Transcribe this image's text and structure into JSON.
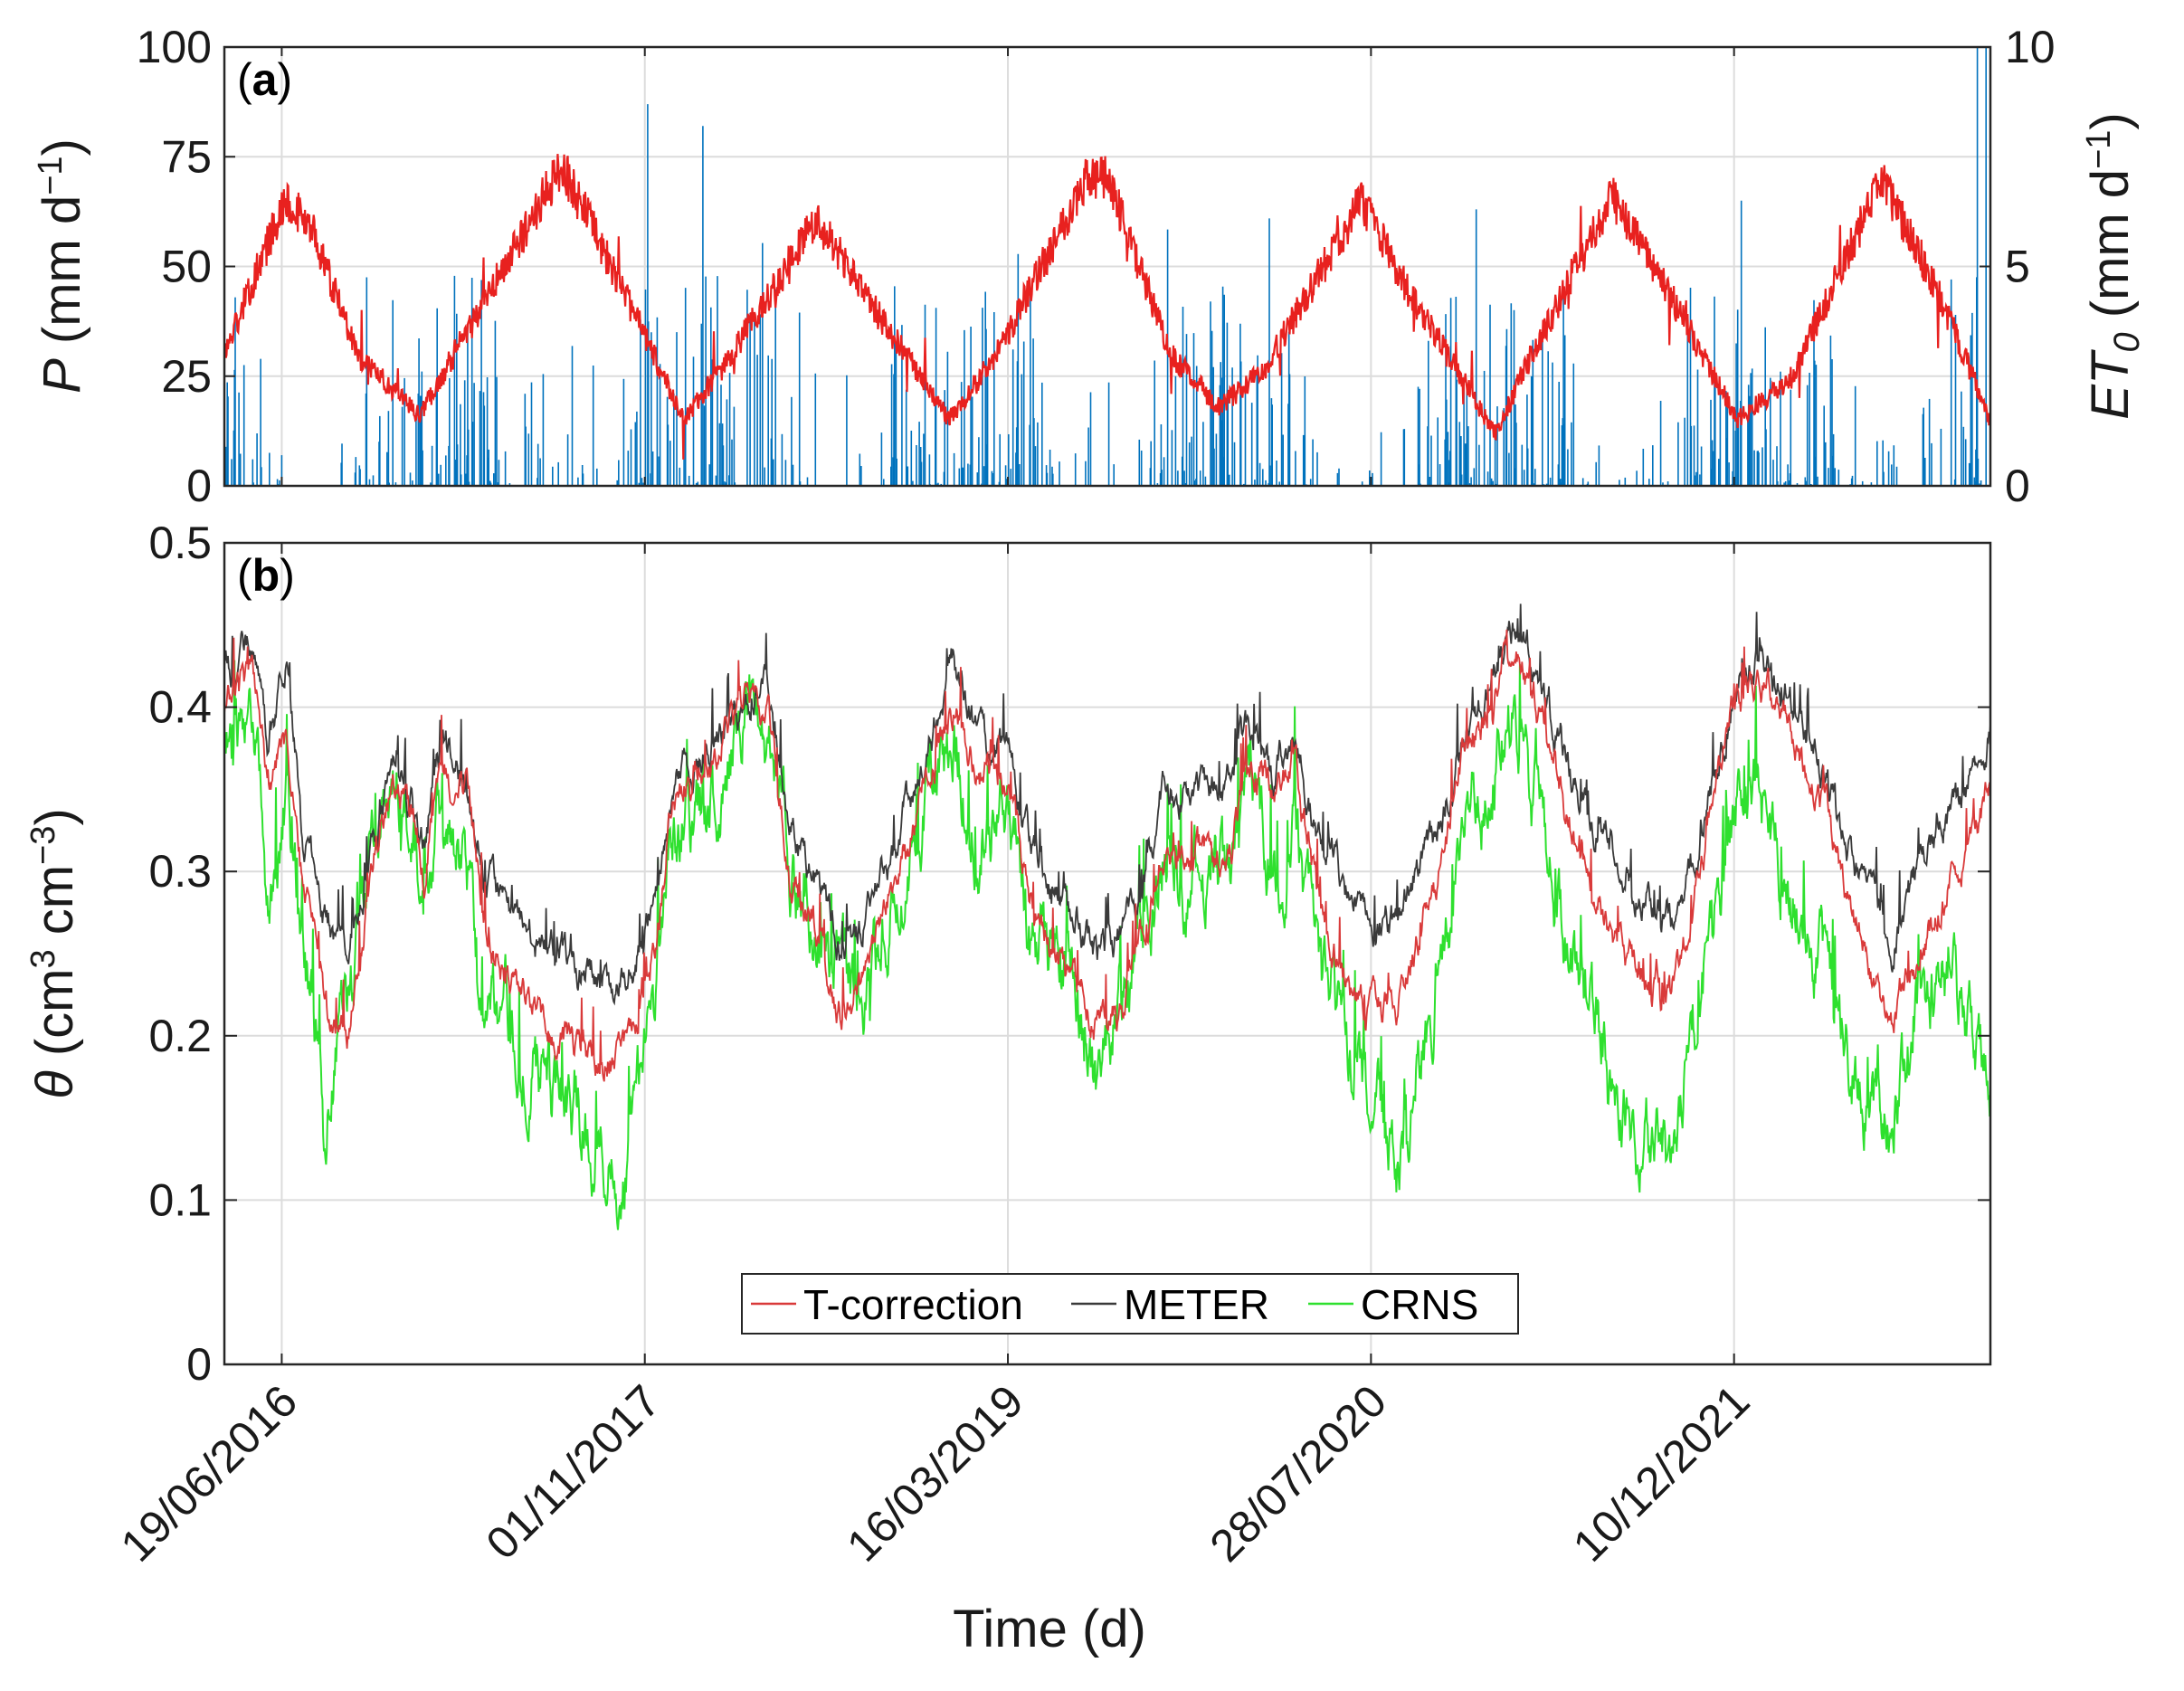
{
  "colors": {
    "precip": "#0072BD",
    "et0": "#E8211F",
    "t_correction": "#D93A3A",
    "meter": "#3a3a3a",
    "crns": "#2EE02E",
    "grid": "#dcdcdc",
    "axis": "#262626"
  },
  "chart_data": [
    {
      "id": "a",
      "type": "bar+line",
      "panel_tag": "(a)",
      "panel_tag_letter": "a",
      "ylabel_left": {
        "symbol": "P",
        "text": " (mm d",
        "sup": "−1",
        "close": ")"
      },
      "ylabel_right": {
        "symbol": "ET",
        "sub": "0",
        "text": " (mm d",
        "sup": "−1",
        "close": ")"
      },
      "ylim_left": [
        0,
        100
      ],
      "ylim_right": [
        0,
        10
      ],
      "yticks_left": [
        "0",
        "25",
        "50",
        "75",
        "100"
      ],
      "yticks_right": [
        "0",
        "5",
        "10"
      ],
      "x_start": "2016-04-01",
      "x_end": "2022-11-28",
      "series": [
        {
          "name": "P",
          "kind": "bar",
          "axis": "left",
          "color": "#0072BD",
          "description": "Daily precipitation, mostly below 25 mm/d with peaks up to ~87 mm/d (Nov 2017), ~82 mm/d (Jan 2018) and 100 mm/d (Nov 2022)."
        },
        {
          "name": "ET0",
          "kind": "line",
          "axis": "right",
          "color": "#E8211F",
          "anchors": [
            [
              "2016-04-01",
              3.0
            ],
            [
              "2016-06-25",
              6.6
            ],
            [
              "2016-08-01",
              5.8
            ],
            [
              "2016-10-01",
              3.0
            ],
            [
              "2016-12-25",
              1.6
            ],
            [
              "2017-03-01",
              3.5
            ],
            [
              "2017-07-10",
              7.3
            ],
            [
              "2017-10-01",
              4.5
            ],
            [
              "2017-12-25",
              1.5
            ],
            [
              "2018-03-01",
              3.0
            ],
            [
              "2018-06-25",
              6.1
            ],
            [
              "2018-09-15",
              4.0
            ],
            [
              "2018-12-25",
              1.5
            ],
            [
              "2019-03-01",
              3.0
            ],
            [
              "2019-07-01",
              7.0
            ],
            [
              "2019-08-01",
              7.0
            ],
            [
              "2019-10-25",
              3.0
            ],
            [
              "2020-01-01",
              1.8
            ],
            [
              "2020-03-01",
              2.6
            ],
            [
              "2020-07-15",
              6.5
            ],
            [
              "2020-09-15",
              4.5
            ],
            [
              "2021-01-15",
              1.2
            ],
            [
              "2021-03-01",
              2.8
            ],
            [
              "2021-06-25",
              6.6
            ],
            [
              "2021-09-15",
              4.3
            ],
            [
              "2021-12-15",
              1.5
            ],
            [
              "2022-03-01",
              2.5
            ],
            [
              "2022-07-01",
              7.0
            ],
            [
              "2022-09-15",
              4.5
            ],
            [
              "2022-11-28",
              1.5
            ]
          ],
          "description": "Daily reference evapotranspiration with a seasonal cycle between ~1.5 and ~7.5 mm/d."
        }
      ]
    },
    {
      "id": "b",
      "type": "line",
      "panel_tag": "(b)",
      "panel_tag_letter": "b",
      "ylabel": {
        "symbol": "θ",
        "text": " (cm",
        "sup1": "3",
        "mid": " cm",
        "sup2": "−3",
        "close": ")"
      },
      "ylim": [
        0,
        0.5
      ],
      "yticks": [
        "0",
        "0.1",
        "0.2",
        "0.3",
        "0.4",
        "0.5"
      ],
      "x_start": "2016-04-01",
      "x_end": "2022-11-28",
      "xlabel": "Time (d)",
      "xticks": [
        "19/06/2016",
        "01/11/2017",
        "16/03/2019",
        "28/07/2020",
        "10/12/2021"
      ],
      "xtick_dates": [
        "2016-06-19",
        "2017-11-01",
        "2019-03-16",
        "2020-07-28",
        "2021-12-10"
      ],
      "legend": {
        "location": "bottom-center",
        "entries": [
          "T-correction",
          "METER",
          "CRNS"
        ]
      },
      "series": [
        {
          "name": "T-correction",
          "color": "#D93A3A",
          "anchors": [
            [
              "2016-04-01",
              0.4
            ],
            [
              "2016-05-10",
              0.42
            ],
            [
              "2016-06-01",
              0.36
            ],
            [
              "2016-06-25",
              0.38
            ],
            [
              "2016-07-15",
              0.3
            ],
            [
              "2016-08-20",
              0.22
            ],
            [
              "2016-09-20",
              0.2
            ],
            [
              "2016-10-20",
              0.3
            ],
            [
              "2016-11-25",
              0.36
            ],
            [
              "2017-01-01",
              0.3
            ],
            [
              "2017-01-25",
              0.36
            ],
            [
              "2017-03-01",
              0.35
            ],
            [
              "2017-03-20",
              0.28
            ],
            [
              "2017-04-20",
              0.24
            ],
            [
              "2017-06-01",
              0.21
            ],
            [
              "2017-08-01",
              0.19
            ],
            [
              "2017-10-01",
              0.185
            ],
            [
              "2017-11-15",
              0.25
            ],
            [
              "2017-12-10",
              0.35
            ],
            [
              "2018-02-01",
              0.37
            ],
            [
              "2018-03-20",
              0.4
            ],
            [
              "2018-04-20",
              0.39
            ],
            [
              "2018-05-20",
              0.3
            ],
            [
              "2018-06-20",
              0.27
            ],
            [
              "2018-08-01",
              0.21
            ],
            [
              "2018-09-01",
              0.24
            ],
            [
              "2018-10-15",
              0.3
            ],
            [
              "2018-12-01",
              0.36
            ],
            [
              "2019-01-01",
              0.4
            ],
            [
              "2019-02-01",
              0.36
            ],
            [
              "2019-03-16",
              0.36
            ],
            [
              "2019-04-15",
              0.28
            ],
            [
              "2019-06-01",
              0.24
            ],
            [
              "2019-07-15",
              0.205
            ],
            [
              "2019-08-15",
              0.21
            ],
            [
              "2019-09-15",
              0.26
            ],
            [
              "2019-10-15",
              0.31
            ],
            [
              "2020-01-15",
              0.31
            ],
            [
              "2020-02-15",
              0.37
            ],
            [
              "2020-03-15",
              0.35
            ],
            [
              "2020-04-15",
              0.36
            ],
            [
              "2020-05-10",
              0.3
            ],
            [
              "2020-06-15",
              0.24
            ],
            [
              "2020-07-28",
              0.21
            ],
            [
              "2020-09-01",
              0.22
            ],
            [
              "2020-11-01",
              0.3
            ],
            [
              "2020-12-01",
              0.37
            ],
            [
              "2021-01-10",
              0.4
            ],
            [
              "2021-02-10",
              0.44
            ],
            [
              "2021-03-10",
              0.41
            ],
            [
              "2021-04-10",
              0.36
            ],
            [
              "2021-06-01",
              0.28
            ],
            [
              "2021-07-15",
              0.25
            ],
            [
              "2021-09-15",
              0.22
            ],
            [
              "2021-10-15",
              0.28
            ],
            [
              "2021-11-15",
              0.35
            ],
            [
              "2021-12-10",
              0.4
            ],
            [
              "2022-01-15",
              0.42
            ],
            [
              "2022-03-01",
              0.38
            ],
            [
              "2022-04-20",
              0.33
            ],
            [
              "2022-06-01",
              0.26
            ],
            [
              "2022-07-15",
              0.21
            ],
            [
              "2022-08-20",
              0.25
            ],
            [
              "2022-10-01",
              0.29
            ],
            [
              "2022-11-28",
              0.35
            ]
          ]
        },
        {
          "name": "METER",
          "color": "#3a3a3a",
          "anchors": [
            [
              "2016-04-01",
              0.42
            ],
            [
              "2016-05-10",
              0.44
            ],
            [
              "2016-06-01",
              0.38
            ],
            [
              "2016-06-25",
              0.43
            ],
            [
              "2016-07-15",
              0.33
            ],
            [
              "2016-08-20",
              0.27
            ],
            [
              "2016-09-20",
              0.25
            ],
            [
              "2016-10-20",
              0.32
            ],
            [
              "2016-11-25",
              0.36
            ],
            [
              "2017-01-01",
              0.32
            ],
            [
              "2017-01-25",
              0.38
            ],
            [
              "2017-03-01",
              0.35
            ],
            [
              "2017-03-20",
              0.3
            ],
            [
              "2017-04-20",
              0.28
            ],
            [
              "2017-06-01",
              0.26
            ],
            [
              "2017-08-01",
              0.24
            ],
            [
              "2017-10-01",
              0.23
            ],
            [
              "2017-11-15",
              0.28
            ],
            [
              "2017-12-10",
              0.35
            ],
            [
              "2018-02-01",
              0.38
            ],
            [
              "2018-03-20",
              0.4
            ],
            [
              "2018-04-20",
              0.41
            ],
            [
              "2018-05-20",
              0.33
            ],
            [
              "2018-06-20",
              0.3
            ],
            [
              "2018-08-01",
              0.25
            ],
            [
              "2018-09-01",
              0.27
            ],
            [
              "2018-10-15",
              0.32
            ],
            [
              "2018-12-01",
              0.38
            ],
            [
              "2019-01-01",
              0.43
            ],
            [
              "2019-02-01",
              0.38
            ],
            [
              "2019-03-16",
              0.37
            ],
            [
              "2019-04-15",
              0.32
            ],
            [
              "2019-06-01",
              0.28
            ],
            [
              "2019-07-15",
              0.25
            ],
            [
              "2019-08-15",
              0.26
            ],
            [
              "2019-09-15",
              0.29
            ],
            [
              "2019-10-15",
              0.35
            ],
            [
              "2020-01-15",
              0.35
            ],
            [
              "2020-02-15",
              0.39
            ],
            [
              "2020-03-15",
              0.36
            ],
            [
              "2020-04-15",
              0.38
            ],
            [
              "2020-05-10",
              0.33
            ],
            [
              "2020-06-15",
              0.3
            ],
            [
              "2020-07-28",
              0.26
            ],
            [
              "2020-09-01",
              0.27
            ],
            [
              "2020-11-01",
              0.33
            ],
            [
              "2020-12-01",
              0.38
            ],
            [
              "2021-01-10",
              0.42
            ],
            [
              "2021-02-10",
              0.45
            ],
            [
              "2021-03-10",
              0.42
            ],
            [
              "2021-04-10",
              0.38
            ],
            [
              "2021-06-01",
              0.33
            ],
            [
              "2021-07-15",
              0.3
            ],
            [
              "2021-09-15",
              0.27
            ],
            [
              "2021-10-15",
              0.3
            ],
            [
              "2021-11-15",
              0.36
            ],
            [
              "2021-12-10",
              0.41
            ],
            [
              "2022-01-15",
              0.43
            ],
            [
              "2022-03-01",
              0.4
            ],
            [
              "2022-04-20",
              0.35
            ],
            [
              "2022-06-01",
              0.3
            ],
            [
              "2022-07-15",
              0.26
            ],
            [
              "2022-08-20",
              0.3
            ],
            [
              "2022-10-01",
              0.33
            ],
            [
              "2022-11-28",
              0.38
            ]
          ]
        },
        {
          "name": "CRNS",
          "color": "#2EE02E",
          "anchors": [
            [
              "2016-04-01",
              0.36
            ],
            [
              "2016-05-10",
              0.4
            ],
            [
              "2016-06-01",
              0.26
            ],
            [
              "2016-06-25",
              0.35
            ],
            [
              "2016-07-15",
              0.26
            ],
            [
              "2016-08-20",
              0.16
            ],
            [
              "2016-09-20",
              0.22
            ],
            [
              "2016-10-20",
              0.3
            ],
            [
              "2016-11-25",
              0.36
            ],
            [
              "2017-01-01",
              0.28
            ],
            [
              "2017-01-25",
              0.34
            ],
            [
              "2017-03-01",
              0.3
            ],
            [
              "2017-03-20",
              0.24
            ],
            [
              "2017-04-20",
              0.21
            ],
            [
              "2017-06-01",
              0.18
            ],
            [
              "2017-08-01",
              0.15
            ],
            [
              "2017-10-01",
              0.12
            ],
            [
              "2017-11-15",
              0.22
            ],
            [
              "2017-12-10",
              0.32
            ],
            [
              "2018-02-01",
              0.34
            ],
            [
              "2018-03-20",
              0.4
            ],
            [
              "2018-04-20",
              0.38
            ],
            [
              "2018-05-20",
              0.3
            ],
            [
              "2018-06-20",
              0.26
            ],
            [
              "2018-08-01",
              0.24
            ],
            [
              "2018-09-01",
              0.22
            ],
            [
              "2018-10-15",
              0.3
            ],
            [
              "2018-12-01",
              0.34
            ],
            [
              "2019-01-01",
              0.38
            ],
            [
              "2019-02-01",
              0.32
            ],
            [
              "2019-03-16",
              0.34
            ],
            [
              "2019-04-15",
              0.26
            ],
            [
              "2019-06-01",
              0.24
            ],
            [
              "2019-07-15",
              0.17
            ],
            [
              "2019-08-15",
              0.22
            ],
            [
              "2019-09-15",
              0.26
            ],
            [
              "2019-10-15",
              0.3
            ],
            [
              "2020-01-15",
              0.3
            ],
            [
              "2020-02-15",
              0.36
            ],
            [
              "2020-03-15",
              0.3
            ],
            [
              "2020-04-15",
              0.32
            ],
            [
              "2020-05-10",
              0.26
            ],
            [
              "2020-06-15",
              0.21
            ],
            [
              "2020-07-28",
              0.17
            ],
            [
              "2020-09-01",
              0.12
            ],
            [
              "2020-11-01",
              0.25
            ],
            [
              "2020-12-01",
              0.33
            ],
            [
              "2021-01-10",
              0.36
            ],
            [
              "2021-02-10",
              0.4
            ],
            [
              "2021-03-10",
              0.35
            ],
            [
              "2021-04-10",
              0.28
            ],
            [
              "2021-06-01",
              0.2
            ],
            [
              "2021-07-15",
              0.14
            ],
            [
              "2021-09-15",
              0.12
            ],
            [
              "2021-10-15",
              0.2
            ],
            [
              "2021-11-15",
              0.28
            ],
            [
              "2021-12-10",
              0.34
            ],
            [
              "2022-01-15",
              0.36
            ],
            [
              "2022-03-01",
              0.28
            ],
            [
              "2022-04-20",
              0.24
            ],
            [
              "2022-06-01",
              0.17
            ],
            [
              "2022-07-15",
              0.14
            ],
            [
              "2022-08-20",
              0.22
            ],
            [
              "2022-10-01",
              0.24
            ],
            [
              "2022-11-28",
              0.16
            ]
          ]
        }
      ]
    }
  ]
}
